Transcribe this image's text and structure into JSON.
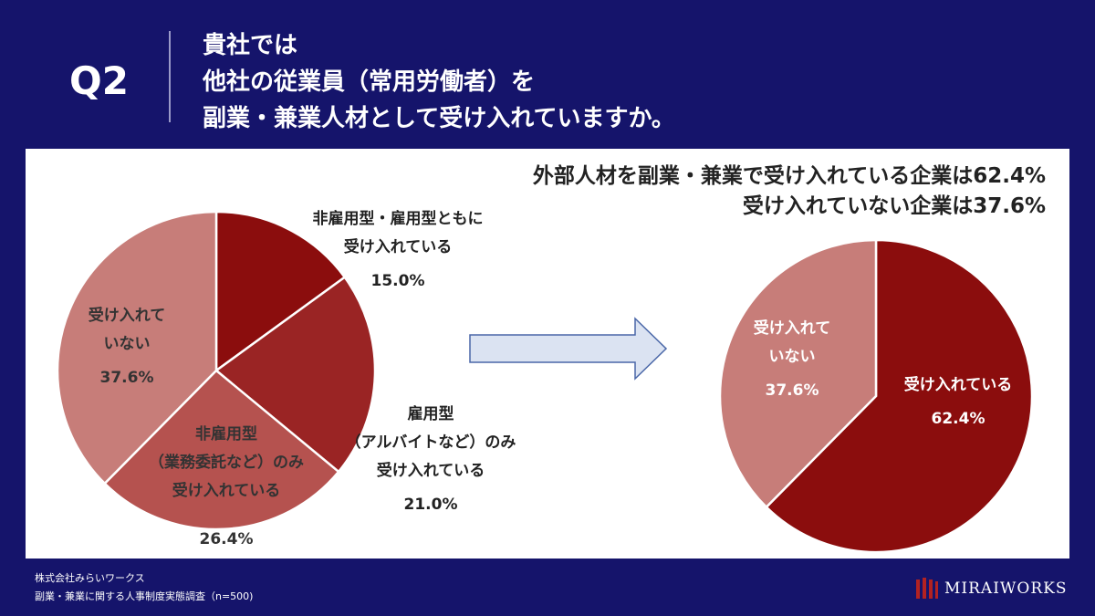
{
  "header": {
    "q_label": "Q2",
    "question_lines": [
      "貴社では",
      "他社の従業員（常用労働者）を",
      "副業・兼業人材として受け入れていますか。"
    ]
  },
  "summary": {
    "line1": "外部人材を副業・兼業で受け入れている企業は62.4%",
    "line2": "受け入れていない企業は37.6%"
  },
  "chart_data": [
    {
      "type": "pie",
      "title": "",
      "slices": [
        {
          "label_lines": [
            "非雇用型・雇用型ともに",
            "受け入れている"
          ],
          "value": 15.0,
          "value_text": "15.0%",
          "color": "#8b0d0d"
        },
        {
          "label_lines": [
            "雇用型",
            "（アルバイトなど）のみ",
            "受け入れている"
          ],
          "value": 21.0,
          "value_text": "21.0%",
          "color": "#9a2424"
        },
        {
          "label_lines": [
            "非雇用型",
            "（業務委託など）のみ",
            "受け入れている"
          ],
          "value": 26.4,
          "value_text": "26.4%",
          "color": "#b5524f"
        },
        {
          "label_lines": [
            "受け入れて",
            "いない"
          ],
          "value": 37.6,
          "value_text": "37.6%",
          "color": "#c77d79"
        }
      ]
    },
    {
      "type": "pie",
      "title": "",
      "slices": [
        {
          "label_lines": [
            "受け入れている"
          ],
          "value": 62.4,
          "value_text": "62.4%",
          "color": "#8b0d0d"
        },
        {
          "label_lines": [
            "受け入れて",
            "いない"
          ],
          "value": 37.6,
          "value_text": "37.6%",
          "color": "#c77d79"
        }
      ]
    }
  ],
  "arrow": {
    "fill": "#dbe3f2",
    "stroke": "#4a67a8"
  },
  "footer": {
    "company": "株式会社みらいワークス",
    "source": "副業・兼業に関する人事制度実態調査（n=500)"
  },
  "logo": {
    "text": "MIRAIWORKS",
    "color": "#b22222"
  }
}
